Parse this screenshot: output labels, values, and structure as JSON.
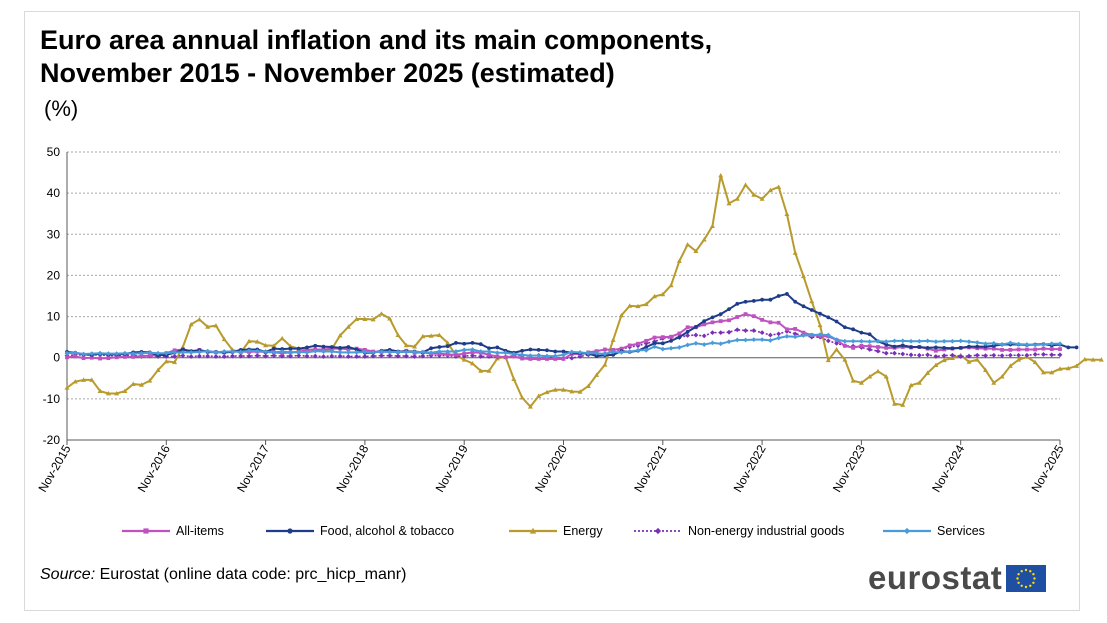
{
  "header": {
    "title_line1": "Euro area annual inflation and its main components,",
    "title_line2": "November 2015 - November 2025 (estimated)",
    "unit": "(%)"
  },
  "footer": {
    "source_label": "Source:",
    "source_text": " Eurostat (online data code: prc_hicp_manr)",
    "logo_text": "eurostat"
  },
  "chart_data": {
    "type": "line",
    "title": "Euro area annual inflation and its main components, November 2015 - November 2025 (estimated)",
    "ylabel": "(%)",
    "xlabel": "",
    "ylim": [
      -20,
      50
    ],
    "yticks": [
      -20,
      -10,
      0,
      10,
      20,
      30,
      40,
      50
    ],
    "x_tick_labels": [
      "Nov-2015",
      "Nov-2016",
      "Nov-2017",
      "Nov-2018",
      "Nov-2019",
      "Nov-2020",
      "Nov-2021",
      "Nov-2022",
      "Nov-2023",
      "Nov-2024",
      "Nov-2025"
    ],
    "months_per_tick": 12,
    "grid": true,
    "legend_position": "bottom",
    "series": [
      {
        "name": "All-items",
        "color": "#c052c0",
        "marker": "square",
        "dash": "solid",
        "values": [
          0.1,
          0.3,
          -0.1,
          0.0,
          -0.2,
          -0.1,
          0.1,
          0.2,
          0.2,
          0.4,
          0.5,
          0.6,
          1.1,
          1.8,
          2.0,
          1.5,
          1.9,
          1.4,
          1.3,
          1.3,
          1.5,
          1.5,
          1.4,
          1.5,
          1.4,
          1.3,
          1.1,
          1.3,
          1.4,
          1.9,
          2.0,
          2.0,
          2.2,
          2.2,
          2.1,
          2.2,
          1.9,
          1.5,
          1.4,
          1.5,
          1.4,
          1.7,
          1.2,
          1.3,
          1.0,
          1.0,
          0.8,
          0.7,
          1.0,
          1.3,
          1.2,
          0.7,
          0.3,
          0.1,
          0.3,
          -0.2,
          -0.3,
          -0.3,
          -0.3,
          -0.3,
          -0.3,
          0.9,
          0.9,
          1.3,
          1.6,
          2.0,
          1.9,
          2.2,
          3.0,
          3.4,
          4.1,
          4.9,
          5.0,
          5.1,
          5.9,
          7.4,
          7.4,
          8.1,
          8.6,
          8.9,
          9.1,
          9.9,
          10.6,
          10.1,
          9.2,
          8.6,
          8.5,
          6.9,
          7.0,
          6.1,
          5.5,
          5.3,
          5.2,
          4.3,
          2.9,
          2.4,
          2.9,
          2.8,
          2.6,
          2.4,
          2.4,
          2.6,
          2.5,
          2.6,
          2.2,
          1.7,
          2.0,
          2.2,
          2.4,
          2.5,
          2.3,
          2.2,
          2.2,
          1.9,
          1.9,
          2.0,
          2.0,
          2.0,
          2.2,
          2.1,
          2.1
        ]
      },
      {
        "name": "Food, alcohol & tobacco",
        "color": "#1f3c88",
        "marker": "circle",
        "dash": "solid",
        "values": [
          1.4,
          1.2,
          0.8,
          0.7,
          1.0,
          0.8,
          0.8,
          0.9,
          1.3,
          1.4,
          1.3,
          0.6,
          0.7,
          1.2,
          2.0,
          1.6,
          1.8,
          1.5,
          1.4,
          1.3,
          1.4,
          1.9,
          2.0,
          2.0,
          1.4,
          2.2,
          2.1,
          2.2,
          2.2,
          2.5,
          2.9,
          2.7,
          2.6,
          2.4,
          2.6,
          2.0,
          1.2,
          1.2,
          1.7,
          1.9,
          1.5,
          1.5,
          1.5,
          1.3,
          2.3,
          2.6,
          2.8,
          3.6,
          3.4,
          3.6,
          3.3,
          2.3,
          2.5,
          1.7,
          1.2,
          1.7,
          2.0,
          1.9,
          1.8,
          1.5,
          1.5,
          1.2,
          1.1,
          1.0,
          0.4,
          0.6,
          0.7,
          1.6,
          1.4,
          1.7,
          2.6,
          3.5,
          3.5,
          4.1,
          5.0,
          6.3,
          7.5,
          8.9,
          9.8,
          10.6,
          11.8,
          13.1,
          13.6,
          13.8,
          14.1,
          14.1,
          15.0,
          15.5,
          13.6,
          12.5,
          11.6,
          10.7,
          9.8,
          8.8,
          7.4,
          6.9,
          6.1,
          5.7,
          4.0,
          3.2,
          2.7,
          3.0,
          2.6,
          2.6,
          2.4,
          2.5,
          2.4,
          2.3,
          2.4,
          2.7,
          2.7,
          2.7,
          2.9,
          3.2,
          3.2,
          3.2,
          3.1,
          3.2,
          3.3,
          3.0,
          3.2,
          2.5,
          2.5
        ]
      },
      {
        "name": "Energy",
        "color": "#b89b2c",
        "marker": "triangle",
        "dash": "solid",
        "values": [
          -7.3,
          -5.8,
          -5.4,
          -5.4,
          -8.1,
          -8.7,
          -8.7,
          -8.1,
          -6.4,
          -6.6,
          -5.6,
          -3.0,
          -0.9,
          -1.1,
          2.6,
          8.1,
          9.3,
          7.5,
          7.8,
          4.5,
          1.9,
          1.3,
          4.0,
          3.9,
          3.0,
          2.9,
          4.7,
          2.8,
          2.2,
          1.9,
          2.0,
          1.8,
          2.1,
          5.4,
          7.5,
          9.4,
          9.4,
          9.3,
          10.7,
          9.5,
          5.5,
          3.0,
          2.7,
          5.2,
          5.3,
          5.5,
          3.6,
          0.6,
          -0.5,
          -1.4,
          -3.2,
          -3.2,
          -0.2,
          0.2,
          -5.2,
          -9.7,
          -11.9,
          -9.3,
          -8.4,
          -7.8,
          -7.8,
          -8.2,
          -8.3,
          -6.9,
          -4.2,
          -1.7,
          4.3,
          10.3,
          12.6,
          12.5,
          13.0,
          14.9,
          15.4,
          17.6,
          23.5,
          27.5,
          25.9,
          28.7,
          32.0,
          44.3,
          37.5,
          38.6,
          42.0,
          39.6,
          38.6,
          40.7,
          41.5,
          34.9,
          25.5,
          19.8,
          13.7,
          7.9,
          -0.6,
          2.0,
          -0.5,
          -5.6,
          -6.1,
          -4.6,
          -3.3,
          -4.6,
          -11.2,
          -11.5,
          -6.7,
          -6.1,
          -3.7,
          -1.8,
          -0.6,
          -0.1,
          0.6,
          -1.0,
          -0.5,
          -3.0,
          -6.1,
          -4.6,
          -2.0,
          -0.5,
          0.2,
          -1.1,
          -3.6,
          -3.6,
          -2.7,
          -2.6,
          -2.0,
          -0.4,
          -0.5,
          -0.5
        ]
      },
      {
        "name": "Non-energy industrial goods",
        "color": "#7a2fb5",
        "marker": "diamond",
        "dash": "dotted",
        "values": [
          0.5,
          0.7,
          0.7,
          0.7,
          0.7,
          0.5,
          0.5,
          0.6,
          0.6,
          0.3,
          0.4,
          0.3,
          0.3,
          0.3,
          0.5,
          0.3,
          0.4,
          0.4,
          0.3,
          0.3,
          0.4,
          0.4,
          0.4,
          0.5,
          0.4,
          0.5,
          0.4,
          0.4,
          0.5,
          0.4,
          0.4,
          0.3,
          0.4,
          0.4,
          0.3,
          0.3,
          0.3,
          0.4,
          0.5,
          0.5,
          0.4,
          0.4,
          0.3,
          0.4,
          0.5,
          0.5,
          0.5,
          0.3,
          0.4,
          0.5,
          0.3,
          0.3,
          0.2,
          0.2,
          0.5,
          0.5,
          0.4,
          0.6,
          0.3,
          -0.1,
          -0.1,
          -0.1,
          0.3,
          0.7,
          0.9,
          1.0,
          1.5,
          2.1,
          2.6,
          2.9,
          3.5,
          3.9,
          4.7,
          4.9,
          4.9,
          5.4,
          5.5,
          5.3,
          6.1,
          6.1,
          6.2,
          6.8,
          6.6,
          6.6,
          6.1,
          5.5,
          5.8,
          6.4,
          5.8,
          5.5,
          5.0,
          5.0,
          4.1,
          3.5,
          2.9,
          2.8,
          2.5,
          2.0,
          1.6,
          1.1,
          1.1,
          0.9,
          0.7,
          0.6,
          0.7,
          0.3,
          0.5,
          0.6,
          0.3,
          0.4,
          0.6,
          0.5,
          0.6,
          0.5,
          0.6,
          0.6,
          0.6,
          0.8,
          0.8,
          0.7,
          0.7
        ]
      },
      {
        "name": "Services",
        "color": "#4a9bd9",
        "marker": "diamond",
        "dash": "solid",
        "values": [
          1.1,
          1.2,
          0.9,
          1.0,
          1.1,
          1.0,
          1.0,
          1.1,
          1.0,
          1.1,
          1.2,
          1.1,
          1.1,
          1.3,
          1.3,
          1.3,
          1.4,
          1.6,
          1.3,
          1.5,
          1.5,
          1.4,
          1.7,
          1.6,
          1.5,
          1.3,
          1.5,
          1.3,
          1.4,
          1.3,
          1.6,
          1.5,
          1.5,
          1.3,
          1.3,
          1.3,
          1.4,
          1.3,
          1.5,
          1.4,
          1.4,
          1.4,
          1.4,
          1.4,
          1.2,
          1.5,
          1.5,
          1.5,
          1.9,
          2.0,
          1.5,
          1.5,
          1.2,
          1.2,
          0.9,
          0.7,
          0.5,
          0.5,
          0.4,
          0.4,
          0.7,
          1.4,
          1.3,
          1.1,
          1.1,
          0.9,
          1.4,
          1.3,
          1.5,
          1.8,
          1.8,
          2.7,
          2.1,
          2.3,
          2.5,
          3.1,
          3.5,
          3.2,
          3.6,
          3.4,
          3.9,
          4.3,
          4.3,
          4.4,
          4.4,
          4.2,
          4.8,
          5.2,
          5.1,
          5.4,
          5.5,
          5.6,
          5.5,
          4.4,
          4.0,
          4.0,
          4.0,
          3.9,
          4.0,
          3.9,
          4.1,
          4.1,
          4.0,
          4.0,
          4.1,
          3.9,
          4.0,
          4.0,
          4.1,
          3.9,
          3.7,
          3.4,
          3.5,
          3.2,
          3.6,
          3.3,
          3.2,
          3.1,
          3.2,
          3.4,
          3.4
        ]
      }
    ]
  }
}
